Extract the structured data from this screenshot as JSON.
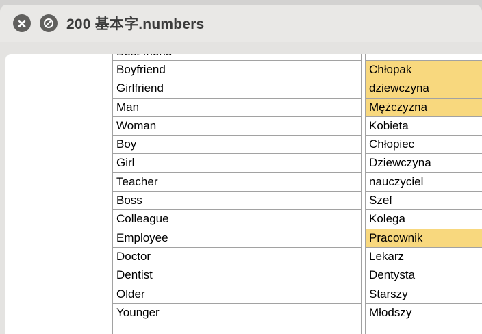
{
  "window": {
    "title": "200 基本字.numbers",
    "icons": {
      "close": "close",
      "prohibit": "no-entry"
    }
  },
  "colors": {
    "highlight": "#f8d87e",
    "titlebar": "#e9e8e6",
    "canvas_gray": "#e4e3e1",
    "border": "#a2a2a2",
    "icon_circle": "#61605e"
  },
  "table": {
    "partial_row": {
      "en": "Best friend",
      "pl": ""
    },
    "rows": [
      {
        "en": "Boyfriend",
        "pl": "Chłopak",
        "highlight": true
      },
      {
        "en": "Girlfriend",
        "pl": "dziewczyna",
        "highlight": true
      },
      {
        "en": "Man",
        "pl": "Mężczyzna",
        "highlight": true
      },
      {
        "en": "Woman",
        "pl": "Kobieta",
        "highlight": false
      },
      {
        "en": "Boy",
        "pl": "Chłopiec",
        "highlight": false
      },
      {
        "en": "Girl",
        "pl": "Dziewczyna",
        "highlight": false
      },
      {
        "en": "Teacher",
        "pl": "nauczyciel",
        "highlight": false
      },
      {
        "en": "Boss",
        "pl": "Szef",
        "highlight": false
      },
      {
        "en": "Colleague",
        "pl": "Kolega",
        "highlight": false
      },
      {
        "en": "Employee",
        "pl": "Pracownik",
        "highlight": true
      },
      {
        "en": "Doctor",
        "pl": "Lekarz",
        "highlight": false
      },
      {
        "en": "Dentist",
        "pl": "Dentysta",
        "highlight": false
      },
      {
        "en": "Older",
        "pl": "Starszy",
        "highlight": false
      },
      {
        "en": "Younger",
        "pl": "Młodszy",
        "highlight": false
      },
      {
        "en": "",
        "pl": "",
        "highlight": false
      }
    ]
  }
}
